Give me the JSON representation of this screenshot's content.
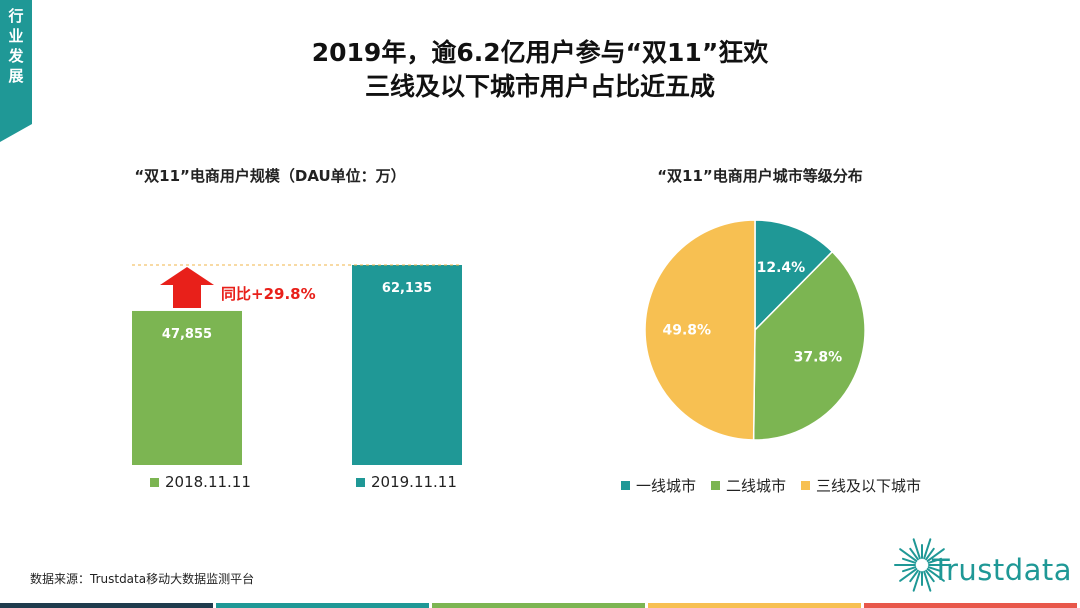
{
  "side_tab": {
    "label": "行业发展"
  },
  "title": {
    "line1": "2019年，逾6.2亿用户参与“双11”狂欢",
    "line2": "三线及以下城市用户占比近五成"
  },
  "colors": {
    "teal": "#1f9896",
    "green": "#7cb552",
    "yellow": "#f7c052",
    "red": "#e8201a"
  },
  "chart_data": [
    {
      "type": "bar",
      "title": "“双11”电商用户规模（DAU单位：万）",
      "categories": [
        "2018.11.11",
        "2019.11.11"
      ],
      "values": [
        47855,
        62135
      ],
      "value_labels": [
        "47,855",
        "62,135"
      ],
      "bar_colors": [
        "#7cb552",
        "#1f9896"
      ],
      "annotation": "同比+29.8%",
      "legend": [
        "2018.11.11",
        "2019.11.11"
      ],
      "legend_position": "bottom"
    },
    {
      "type": "pie",
      "title": "“双11”电商用户城市等级分布",
      "labels": [
        "一线城市",
        "二线城市",
        "三线及以下城市"
      ],
      "values": [
        12.4,
        37.8,
        49.8
      ],
      "value_labels": [
        "12.4%",
        "37.8%",
        "49.8%"
      ],
      "slice_colors": [
        "#1f9896",
        "#7cb552",
        "#f7c052"
      ],
      "legend_position": "bottom"
    }
  ],
  "source": "数据来源：Trustdata移动大数据监测平台",
  "logo": {
    "text": "Trustdata"
  },
  "bottom_strip": [
    "#1f3b4d",
    "#1f9896",
    "#7cb552",
    "#f7c052",
    "#e8574a"
  ]
}
